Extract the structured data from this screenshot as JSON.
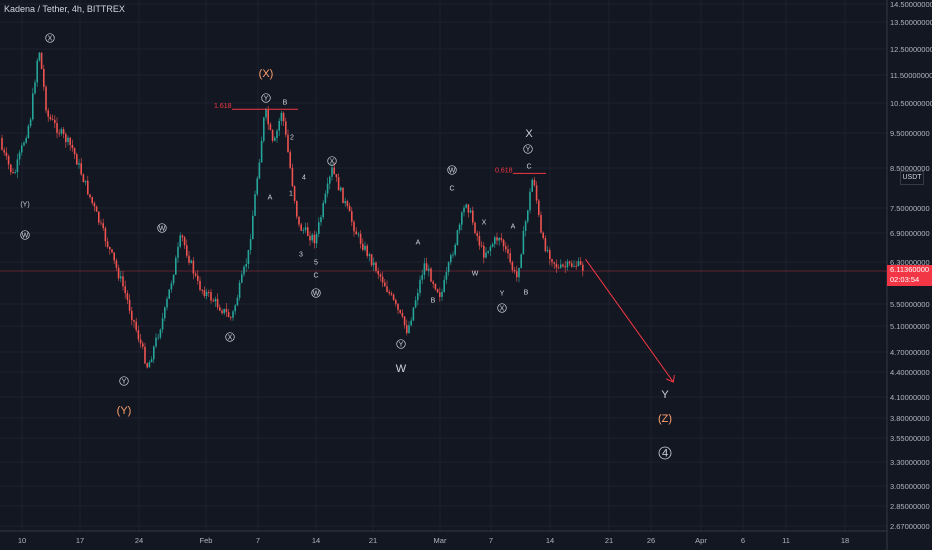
{
  "header": {
    "title": "Kadena / Tether, 4h, BITTREX"
  },
  "price_axis": {
    "ticks": [
      "14.50000000",
      "13.50000000",
      "12.50000000",
      "11.50000000",
      "10.50000000",
      "9.50000000",
      "8.50000000",
      "7.50000000",
      "6.90000000",
      "6.30000000",
      "5.50000000",
      "5.10000000",
      "4.70000000",
      "4.40000000",
      "4.10000000",
      "3.80000000",
      "3.55000000",
      "3.30000000",
      "3.05000000",
      "2.85000000",
      "2.67000000"
    ],
    "currency_badge": "USDT",
    "last_price": "6.11360000",
    "countdown": "02:03:54"
  },
  "time_axis": {
    "ticks": [
      "10",
      "17",
      "24",
      "Feb",
      "7",
      "14",
      "21",
      "Mar",
      "7",
      "14",
      "21",
      "26",
      "Apr",
      "6",
      "11",
      "18"
    ]
  },
  "colors": {
    "background": "#131722",
    "up": "#26a69a",
    "down": "#ef5350",
    "label_orange": "#ff9f6a",
    "fib_red": "#f23645",
    "text": "#d1d4dc"
  },
  "chart_data": {
    "type": "candlestick",
    "symbol": "Kadena / Tether",
    "interval": "4h",
    "exchange": "BITTREX",
    "ylim": [
      2.67,
      14.5
    ],
    "y_scale": "log",
    "approx_swing_path": [
      {
        "x": "Jan 7",
        "price": 9.3
      },
      {
        "x": "Jan 9",
        "price": 8.2
      },
      {
        "x": "Jan 11",
        "price": 9.9
      },
      {
        "x": "Jan 12",
        "price": 12.5
      },
      {
        "x": "Jan 13",
        "price": 10.0
      },
      {
        "x": "Jan 16",
        "price": 9.0
      },
      {
        "x": "Jan 19",
        "price": 7.2
      },
      {
        "x": "Jan 22",
        "price": 5.8
      },
      {
        "x": "Jan 25",
        "price": 4.45
      },
      {
        "x": "Jan 27",
        "price": 5.3
      },
      {
        "x": "Jan 29",
        "price": 6.8
      },
      {
        "x": "Jan 31",
        "price": 5.8
      },
      {
        "x": "Feb 4",
        "price": 5.2
      },
      {
        "x": "Feb 6",
        "price": 6.4
      },
      {
        "x": "Feb 8",
        "price": 10.2
      },
      {
        "x": "Feb 9",
        "price": 9.0
      },
      {
        "x": "Feb 10",
        "price": 10.2
      },
      {
        "x": "Feb 12",
        "price": 7.0
      },
      {
        "x": "Feb 14",
        "price": 6.7
      },
      {
        "x": "Feb 16",
        "price": 8.4
      },
      {
        "x": "Feb 19",
        "price": 6.8
      },
      {
        "x": "Feb 22",
        "price": 5.9
      },
      {
        "x": "Feb 25",
        "price": 5.0
      },
      {
        "x": "Feb 27",
        "price": 6.2
      },
      {
        "x": "Mar 1",
        "price": 5.6
      },
      {
        "x": "Mar 4",
        "price": 7.6
      },
      {
        "x": "Mar 6",
        "price": 6.4
      },
      {
        "x": "Mar 8",
        "price": 6.8
      },
      {
        "x": "Mar 10",
        "price": 5.9
      },
      {
        "x": "Mar 12",
        "price": 8.3
      },
      {
        "x": "Mar 13",
        "price": 6.7
      },
      {
        "x": "Mar 15",
        "price": 6.1
      },
      {
        "x": "Mar 17",
        "price": 6.2
      },
      {
        "x": "Mar 18",
        "price": 6.11
      }
    ],
    "projection": {
      "from": {
        "x": "Mar 18",
        "price": 6.3
      },
      "to": {
        "x": "Mar 28",
        "price": 4.3
      }
    },
    "fib_levels": [
      {
        "label": "1.618",
        "price": 10.2
      },
      {
        "label": "0.618",
        "price": 8.3
      }
    ],
    "wave_labels": [
      {
        "text": "X",
        "style": "circle"
      },
      {
        "text": "(Y)",
        "style": "plain"
      },
      {
        "text": "W",
        "style": "circle"
      },
      {
        "text": "Y",
        "style": "circle"
      },
      {
        "text": "(Y)",
        "style": "orange"
      },
      {
        "text": "W",
        "style": "circle"
      },
      {
        "text": "X",
        "style": "circle"
      },
      {
        "text": "(X)",
        "style": "orange"
      },
      {
        "text": "Y",
        "style": "circle"
      },
      {
        "text": "B",
        "style": "plain"
      },
      {
        "text": "A",
        "style": "plain"
      },
      {
        "text": "1",
        "style": "plain"
      },
      {
        "text": "2",
        "style": "plain"
      },
      {
        "text": "3",
        "style": "plain"
      },
      {
        "text": "4",
        "style": "plain"
      },
      {
        "text": "5",
        "style": "plain"
      },
      {
        "text": "C",
        "style": "plain"
      },
      {
        "text": "W",
        "style": "circle"
      },
      {
        "text": "X",
        "style": "circle"
      },
      {
        "text": "A",
        "style": "plain"
      },
      {
        "text": "B",
        "style": "plain"
      },
      {
        "text": "Y",
        "style": "circle"
      },
      {
        "text": "W",
        "style": "big"
      },
      {
        "text": "W",
        "style": "circle"
      },
      {
        "text": "C",
        "style": "plain"
      },
      {
        "text": "X",
        "style": "plain"
      },
      {
        "text": "W",
        "style": "plain"
      },
      {
        "text": "Y",
        "style": "plain"
      },
      {
        "text": "X",
        "style": "circle"
      },
      {
        "text": "A",
        "style": "plain"
      },
      {
        "text": "X",
        "style": "big"
      },
      {
        "text": "Y",
        "style": "circle"
      },
      {
        "text": "C",
        "style": "plain"
      },
      {
        "text": "B",
        "style": "plain"
      },
      {
        "text": "Y",
        "style": "big"
      },
      {
        "text": "(Z)",
        "style": "orange"
      },
      {
        "text": "4",
        "style": "circle-orange"
      }
    ]
  }
}
